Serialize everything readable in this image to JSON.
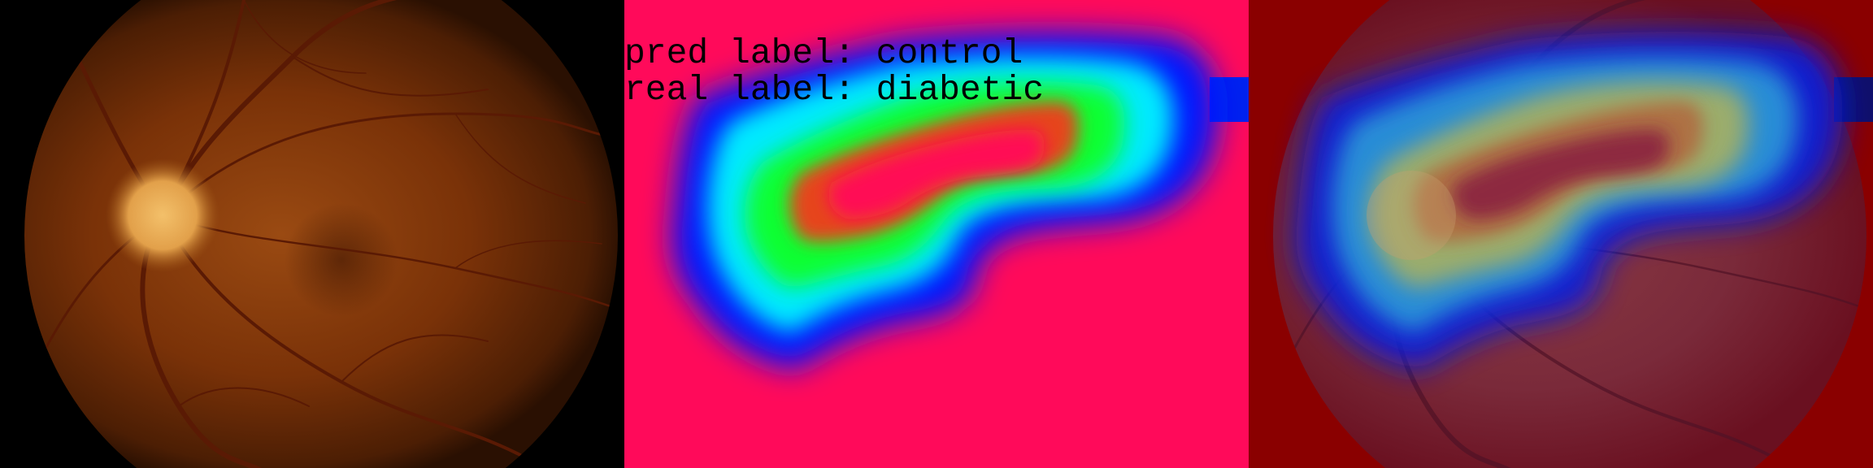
{
  "panels": {
    "fundus": {
      "description_name": "original-fundus-photo"
    },
    "heatmap": {
      "pred_label_text": "pred label: control",
      "real_label_text": "real label: diabetic"
    },
    "overlay": {
      "description_name": "heatmap-overlay"
    }
  },
  "colors": {
    "heatmap_background": "#ff0a5a",
    "overlay_background": "#8a0000",
    "fundus_background": "#000000"
  }
}
